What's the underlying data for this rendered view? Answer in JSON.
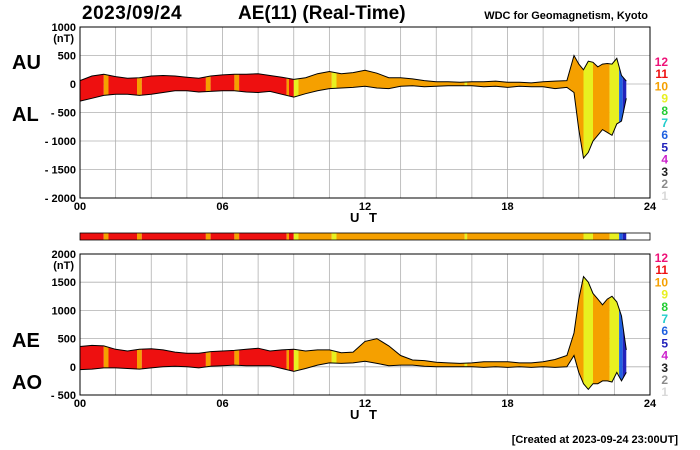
{
  "header": {
    "date": "2023/09/24",
    "title": "AE(11) (Real-Time)",
    "source": "WDC for Geomagnetism, Kyoto",
    "created": "[Created at 2023-09-24 23:00UT]"
  },
  "level_colors": {
    "1": "#d8d8d8",
    "2": "#8a8a8a",
    "3": "#202020",
    "4": "#cc22cc",
    "5": "#2222bb",
    "6": "#1f60e0",
    "7": "#22cccc",
    "8": "#22cc33",
    "9": "#e8f020",
    "10": "#f5a000",
    "11": "#ee1010",
    "12": "#ee1177"
  },
  "level_labels": [
    "12",
    "11",
    "10",
    "9",
    "8",
    "7",
    "6",
    "5",
    "4",
    "3",
    "2",
    "1"
  ],
  "stations_strip": {
    "segments": [
      [
        0,
        1,
        11
      ],
      [
        1,
        1.2,
        10
      ],
      [
        1.2,
        2.4,
        11
      ],
      [
        2.4,
        2.6,
        10
      ],
      [
        2.6,
        5.3,
        11
      ],
      [
        5.3,
        5.5,
        10
      ],
      [
        5.5,
        6.5,
        11
      ],
      [
        6.5,
        6.7,
        10
      ],
      [
        6.7,
        8.7,
        11
      ],
      [
        8.7,
        8.8,
        10
      ],
      [
        8.8,
        9.0,
        11
      ],
      [
        9.0,
        9.2,
        9
      ],
      [
        9.2,
        10.6,
        10
      ],
      [
        10.6,
        10.8,
        9
      ],
      [
        10.8,
        16.2,
        10
      ],
      [
        16.2,
        16.3,
        9
      ],
      [
        16.3,
        20.8,
        10
      ],
      [
        20.8,
        21.2,
        10
      ],
      [
        21.2,
        21.6,
        9
      ],
      [
        21.6,
        22.3,
        10
      ],
      [
        22.3,
        22.7,
        9
      ],
      [
        22.7,
        22.85,
        6
      ],
      [
        22.85,
        23.0,
        5
      ]
    ]
  },
  "chart_data": [
    {
      "type": "area",
      "name": "AU/AL",
      "labels": {
        "upper": "AU",
        "lower": "AL"
      },
      "unit": "(nT)",
      "xlabel": "U T",
      "xlim": [
        0,
        24
      ],
      "xticks": [
        "00",
        "06",
        "12",
        "18",
        "24"
      ],
      "ylim": [
        -2000,
        1000
      ],
      "yticks": [
        "1000",
        "500",
        "0",
        "- 500",
        "- 1000",
        "- 1500",
        "- 2000"
      ],
      "x_hours": [
        0,
        0.5,
        1,
        1.5,
        2,
        2.5,
        3,
        3.5,
        4,
        4.5,
        5,
        5.5,
        6,
        6.5,
        7,
        7.5,
        8,
        8.5,
        9,
        9.5,
        10,
        10.5,
        11,
        11.5,
        12,
        12.5,
        13,
        13.5,
        14,
        14.5,
        15,
        15.5,
        16,
        16.5,
        17,
        17.5,
        18,
        18.5,
        19,
        19.5,
        20,
        20.5,
        20.8,
        21,
        21.2,
        21.4,
        21.6,
        21.8,
        22,
        22.2,
        22.4,
        22.6,
        22.8,
        23
      ],
      "series": [
        {
          "name": "AU",
          "values": [
            60,
            140,
            170,
            130,
            100,
            110,
            140,
            150,
            140,
            120,
            100,
            140,
            160,
            170,
            170,
            180,
            150,
            120,
            80,
            110,
            180,
            220,
            180,
            200,
            240,
            190,
            110,
            110,
            90,
            60,
            40,
            40,
            30,
            40,
            40,
            50,
            30,
            30,
            20,
            40,
            50,
            60,
            500,
            350,
            250,
            400,
            380,
            300,
            350,
            360,
            350,
            450,
            150,
            50
          ]
        },
        {
          "name": "AL",
          "values": [
            -300,
            -250,
            -200,
            -180,
            -180,
            -200,
            -180,
            -150,
            -120,
            -120,
            -140,
            -130,
            -120,
            -120,
            -140,
            -150,
            -130,
            -180,
            -230,
            -170,
            -120,
            -80,
            -70,
            -60,
            -40,
            -70,
            -80,
            -40,
            -30,
            -50,
            -40,
            -30,
            -30,
            -30,
            -50,
            -40,
            -60,
            -40,
            -50,
            -50,
            -80,
            -60,
            -150,
            -800,
            -1300,
            -1200,
            -1000,
            -900,
            -800,
            -850,
            -900,
            -700,
            -650,
            -250
          ]
        }
      ],
      "level_segments": [
        [
          0,
          1,
          11
        ],
        [
          1,
          1.2,
          10
        ],
        [
          1.2,
          2.4,
          11
        ],
        [
          2.4,
          2.6,
          10
        ],
        [
          2.6,
          5.3,
          11
        ],
        [
          5.3,
          5.5,
          10
        ],
        [
          5.5,
          6.5,
          11
        ],
        [
          6.5,
          6.7,
          10
        ],
        [
          6.7,
          8.7,
          11
        ],
        [
          8.7,
          8.8,
          10
        ],
        [
          8.8,
          9.0,
          11
        ],
        [
          9.0,
          9.2,
          9
        ],
        [
          9.2,
          10.6,
          10
        ],
        [
          10.6,
          10.8,
          9
        ],
        [
          10.8,
          16.2,
          10
        ],
        [
          16.2,
          16.3,
          9
        ],
        [
          16.3,
          20.8,
          10
        ],
        [
          20.8,
          21.2,
          10
        ],
        [
          21.2,
          21.6,
          9
        ],
        [
          21.6,
          22.3,
          10
        ],
        [
          22.3,
          22.7,
          9
        ],
        [
          22.7,
          22.85,
          6
        ],
        [
          22.85,
          23.0,
          5
        ]
      ]
    },
    {
      "type": "area",
      "name": "AE/AO",
      "labels": {
        "upper": "AE",
        "lower": "AO"
      },
      "unit": "(nT)",
      "xlabel": "U T",
      "xlim": [
        0,
        24
      ],
      "xticks": [
        "00",
        "06",
        "12",
        "18",
        "24"
      ],
      "ylim": [
        -500,
        2000
      ],
      "yticks": [
        "2000",
        "1500",
        "1000",
        "500",
        "0",
        "- 500"
      ],
      "x_hours": [
        0,
        0.5,
        1,
        1.5,
        2,
        2.5,
        3,
        3.5,
        4,
        4.5,
        5,
        5.5,
        6,
        6.5,
        7,
        7.5,
        8,
        8.5,
        9,
        9.5,
        10,
        10.5,
        11,
        11.5,
        12,
        12.5,
        13,
        13.5,
        14,
        14.5,
        15,
        15.5,
        16,
        16.5,
        17,
        17.5,
        18,
        18.5,
        19,
        19.5,
        20,
        20.5,
        20.8,
        21,
        21.2,
        21.4,
        21.6,
        21.8,
        22,
        22.2,
        22.4,
        22.6,
        22.8,
        23
      ],
      "series": [
        {
          "name": "AE",
          "values": [
            360,
            380,
            370,
            310,
            280,
            310,
            320,
            300,
            260,
            240,
            240,
            270,
            280,
            290,
            310,
            330,
            280,
            300,
            310,
            280,
            300,
            300,
            250,
            260,
            450,
            500,
            370,
            200,
            120,
            110,
            80,
            70,
            60,
            70,
            90,
            90,
            90,
            70,
            70,
            90,
            130,
            200,
            600,
            1200,
            1600,
            1500,
            1300,
            1200,
            1100,
            1200,
            1250,
            1150,
            900,
            300
          ]
        },
        {
          "name": "AO",
          "values": [
            -50,
            -40,
            -20,
            -20,
            -30,
            -40,
            -20,
            0,
            10,
            0,
            -20,
            10,
            20,
            30,
            20,
            20,
            20,
            -30,
            -80,
            -30,
            30,
            70,
            60,
            70,
            100,
            60,
            20,
            30,
            30,
            10,
            0,
            0,
            0,
            0,
            -10,
            0,
            -10,
            0,
            -10,
            0,
            -10,
            0,
            200,
            -100,
            -300,
            -400,
            -300,
            -300,
            -250,
            -250,
            -270,
            -100,
            -250,
            -100
          ]
        }
      ],
      "level_segments": [
        [
          0,
          1,
          11
        ],
        [
          1,
          1.2,
          10
        ],
        [
          1.2,
          2.4,
          11
        ],
        [
          2.4,
          2.6,
          10
        ],
        [
          2.6,
          5.3,
          11
        ],
        [
          5.3,
          5.5,
          10
        ],
        [
          5.5,
          6.5,
          11
        ],
        [
          6.5,
          6.7,
          10
        ],
        [
          6.7,
          8.7,
          11
        ],
        [
          8.7,
          8.8,
          10
        ],
        [
          8.8,
          9.0,
          11
        ],
        [
          9.0,
          9.2,
          9
        ],
        [
          9.2,
          10.6,
          10
        ],
        [
          10.6,
          10.8,
          9
        ],
        [
          10.8,
          16.2,
          10
        ],
        [
          16.2,
          16.3,
          9
        ],
        [
          16.3,
          20.8,
          10
        ],
        [
          20.8,
          21.2,
          10
        ],
        [
          21.2,
          21.6,
          9
        ],
        [
          21.6,
          22.3,
          10
        ],
        [
          22.3,
          22.7,
          9
        ],
        [
          22.7,
          22.85,
          6
        ],
        [
          22.85,
          23.0,
          5
        ]
      ]
    }
  ]
}
